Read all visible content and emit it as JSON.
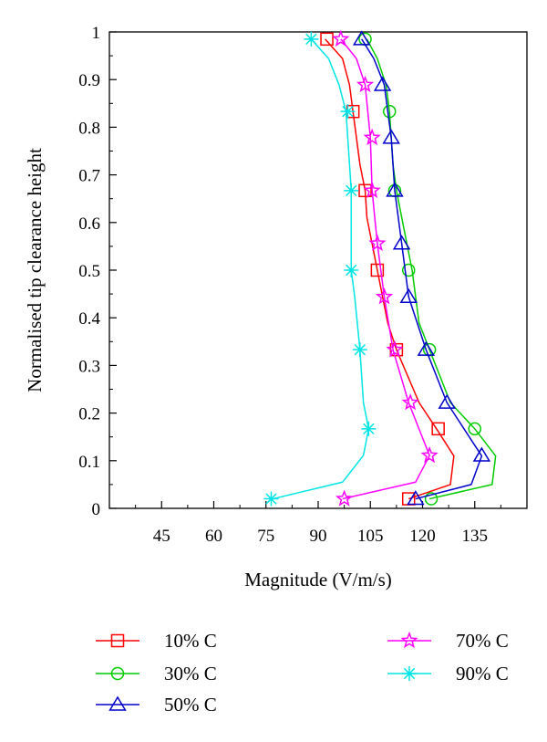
{
  "chart_data": {
    "type": "line",
    "title": "",
    "xlabel": "Magnitude (V/m/s)",
    "ylabel": "Normalised tip clearance height",
    "xlim": [
      30,
      150
    ],
    "ylim": [
      0,
      1
    ],
    "x_ticks": [
      45,
      60,
      75,
      90,
      105,
      120,
      135
    ],
    "y_ticks": [
      0,
      0.1,
      0.2,
      0.3,
      0.4,
      0.5,
      0.6,
      0.7,
      0.8,
      0.9,
      1
    ],
    "grid": false,
    "legend_position": "bottom",
    "series": [
      {
        "name": "10% C",
        "color": "#ff0000",
        "marker": "square",
        "line": [
          [
            116,
            0.02
          ],
          [
            128,
            0.05
          ],
          [
            129,
            0.11
          ],
          [
            124,
            0.167
          ],
          [
            119,
            0.222
          ],
          [
            112.5,
            0.333
          ],
          [
            110,
            0.389
          ],
          [
            107,
            0.5
          ],
          [
            104,
            0.611
          ],
          [
            103.5,
            0.667
          ],
          [
            102,
            0.722
          ],
          [
            101,
            0.778
          ],
          [
            100,
            0.833
          ],
          [
            99,
            0.889
          ],
          [
            97,
            0.944
          ],
          [
            92,
            0.985
          ]
        ],
        "markers": [
          [
            116,
            0.02
          ],
          [
            124.5,
            0.167
          ],
          [
            112.5,
            0.333
          ],
          [
            107,
            0.5
          ],
          [
            103.5,
            0.667
          ],
          [
            100,
            0.833
          ],
          [
            92.5,
            0.985
          ]
        ]
      },
      {
        "name": "30% C",
        "color": "#00cc00",
        "marker": "circle",
        "line": [
          [
            122,
            0.02
          ],
          [
            140,
            0.05
          ],
          [
            141,
            0.11
          ],
          [
            135,
            0.167
          ],
          [
            128,
            0.222
          ],
          [
            122,
            0.333
          ],
          [
            119,
            0.389
          ],
          [
            117,
            0.5
          ],
          [
            114,
            0.611
          ],
          [
            112.5,
            0.667
          ],
          [
            111.5,
            0.722
          ],
          [
            111,
            0.778
          ],
          [
            110.5,
            0.833
          ],
          [
            109.5,
            0.889
          ],
          [
            107,
            0.944
          ],
          [
            104,
            0.985
          ]
        ],
        "markers": [
          [
            122.5,
            0.02
          ],
          [
            135,
            0.167
          ],
          [
            122,
            0.333
          ],
          [
            116,
            0.5
          ],
          [
            112,
            0.667
          ],
          [
            110.5,
            0.833
          ],
          [
            103.5,
            0.985
          ]
        ]
      },
      {
        "name": "50% C",
        "color": "#0000cc",
        "marker": "triangle",
        "line": [
          [
            118,
            0.02
          ],
          [
            134,
            0.05
          ],
          [
            137,
            0.11
          ],
          [
            127,
            0.222
          ],
          [
            121,
            0.333
          ],
          [
            116,
            0.444
          ],
          [
            114,
            0.556
          ],
          [
            112,
            0.667
          ],
          [
            111,
            0.778
          ],
          [
            109,
            0.889
          ],
          [
            106,
            0.944
          ],
          [
            102.5,
            0.985
          ]
        ],
        "markers": [
          [
            118,
            0.02
          ],
          [
            137,
            0.111
          ],
          [
            127,
            0.222
          ],
          [
            121,
            0.333
          ],
          [
            116,
            0.444
          ],
          [
            114,
            0.556
          ],
          [
            112,
            0.667
          ],
          [
            111,
            0.778
          ],
          [
            108.5,
            0.889
          ],
          [
            102.5,
            0.985
          ]
        ]
      },
      {
        "name": "70% C",
        "color": "#ff00ff",
        "marker": "star",
        "line": [
          [
            97,
            0.02
          ],
          [
            118,
            0.055
          ],
          [
            122,
            0.111
          ],
          [
            116,
            0.222
          ],
          [
            111.5,
            0.333
          ],
          [
            109,
            0.444
          ],
          [
            107,
            0.556
          ],
          [
            105.5,
            0.667
          ],
          [
            105,
            0.778
          ],
          [
            103.5,
            0.889
          ],
          [
            101,
            0.944
          ],
          [
            96.5,
            0.985
          ]
        ],
        "markers": [
          [
            97.5,
            0.02
          ],
          [
            122,
            0.111
          ],
          [
            116.5,
            0.222
          ],
          [
            112,
            0.333
          ],
          [
            109,
            0.444
          ],
          [
            107,
            0.556
          ],
          [
            105.5,
            0.667
          ],
          [
            105.5,
            0.778
          ],
          [
            103.5,
            0.889
          ],
          [
            96.5,
            0.985
          ]
        ]
      },
      {
        "name": "90% C",
        "color": "#00e5e5",
        "marker": "asterisk",
        "line": [
          [
            77,
            0.02
          ],
          [
            97,
            0.055
          ],
          [
            103,
            0.111
          ],
          [
            104.5,
            0.167
          ],
          [
            103,
            0.222
          ],
          [
            102,
            0.333
          ],
          [
            100.5,
            0.444
          ],
          [
            99.5,
            0.5
          ],
          [
            99.5,
            0.611
          ],
          [
            99.5,
            0.667
          ],
          [
            98.5,
            0.778
          ],
          [
            98,
            0.833
          ],
          [
            96,
            0.889
          ],
          [
            93,
            0.944
          ],
          [
            88,
            0.985
          ]
        ],
        "markers": [
          [
            76.5,
            0.02
          ],
          [
            104.5,
            0.167
          ],
          [
            102,
            0.333
          ],
          [
            99.5,
            0.5
          ],
          [
            99.5,
            0.667
          ],
          [
            98.5,
            0.833
          ],
          [
            88,
            0.985
          ]
        ]
      }
    ]
  }
}
